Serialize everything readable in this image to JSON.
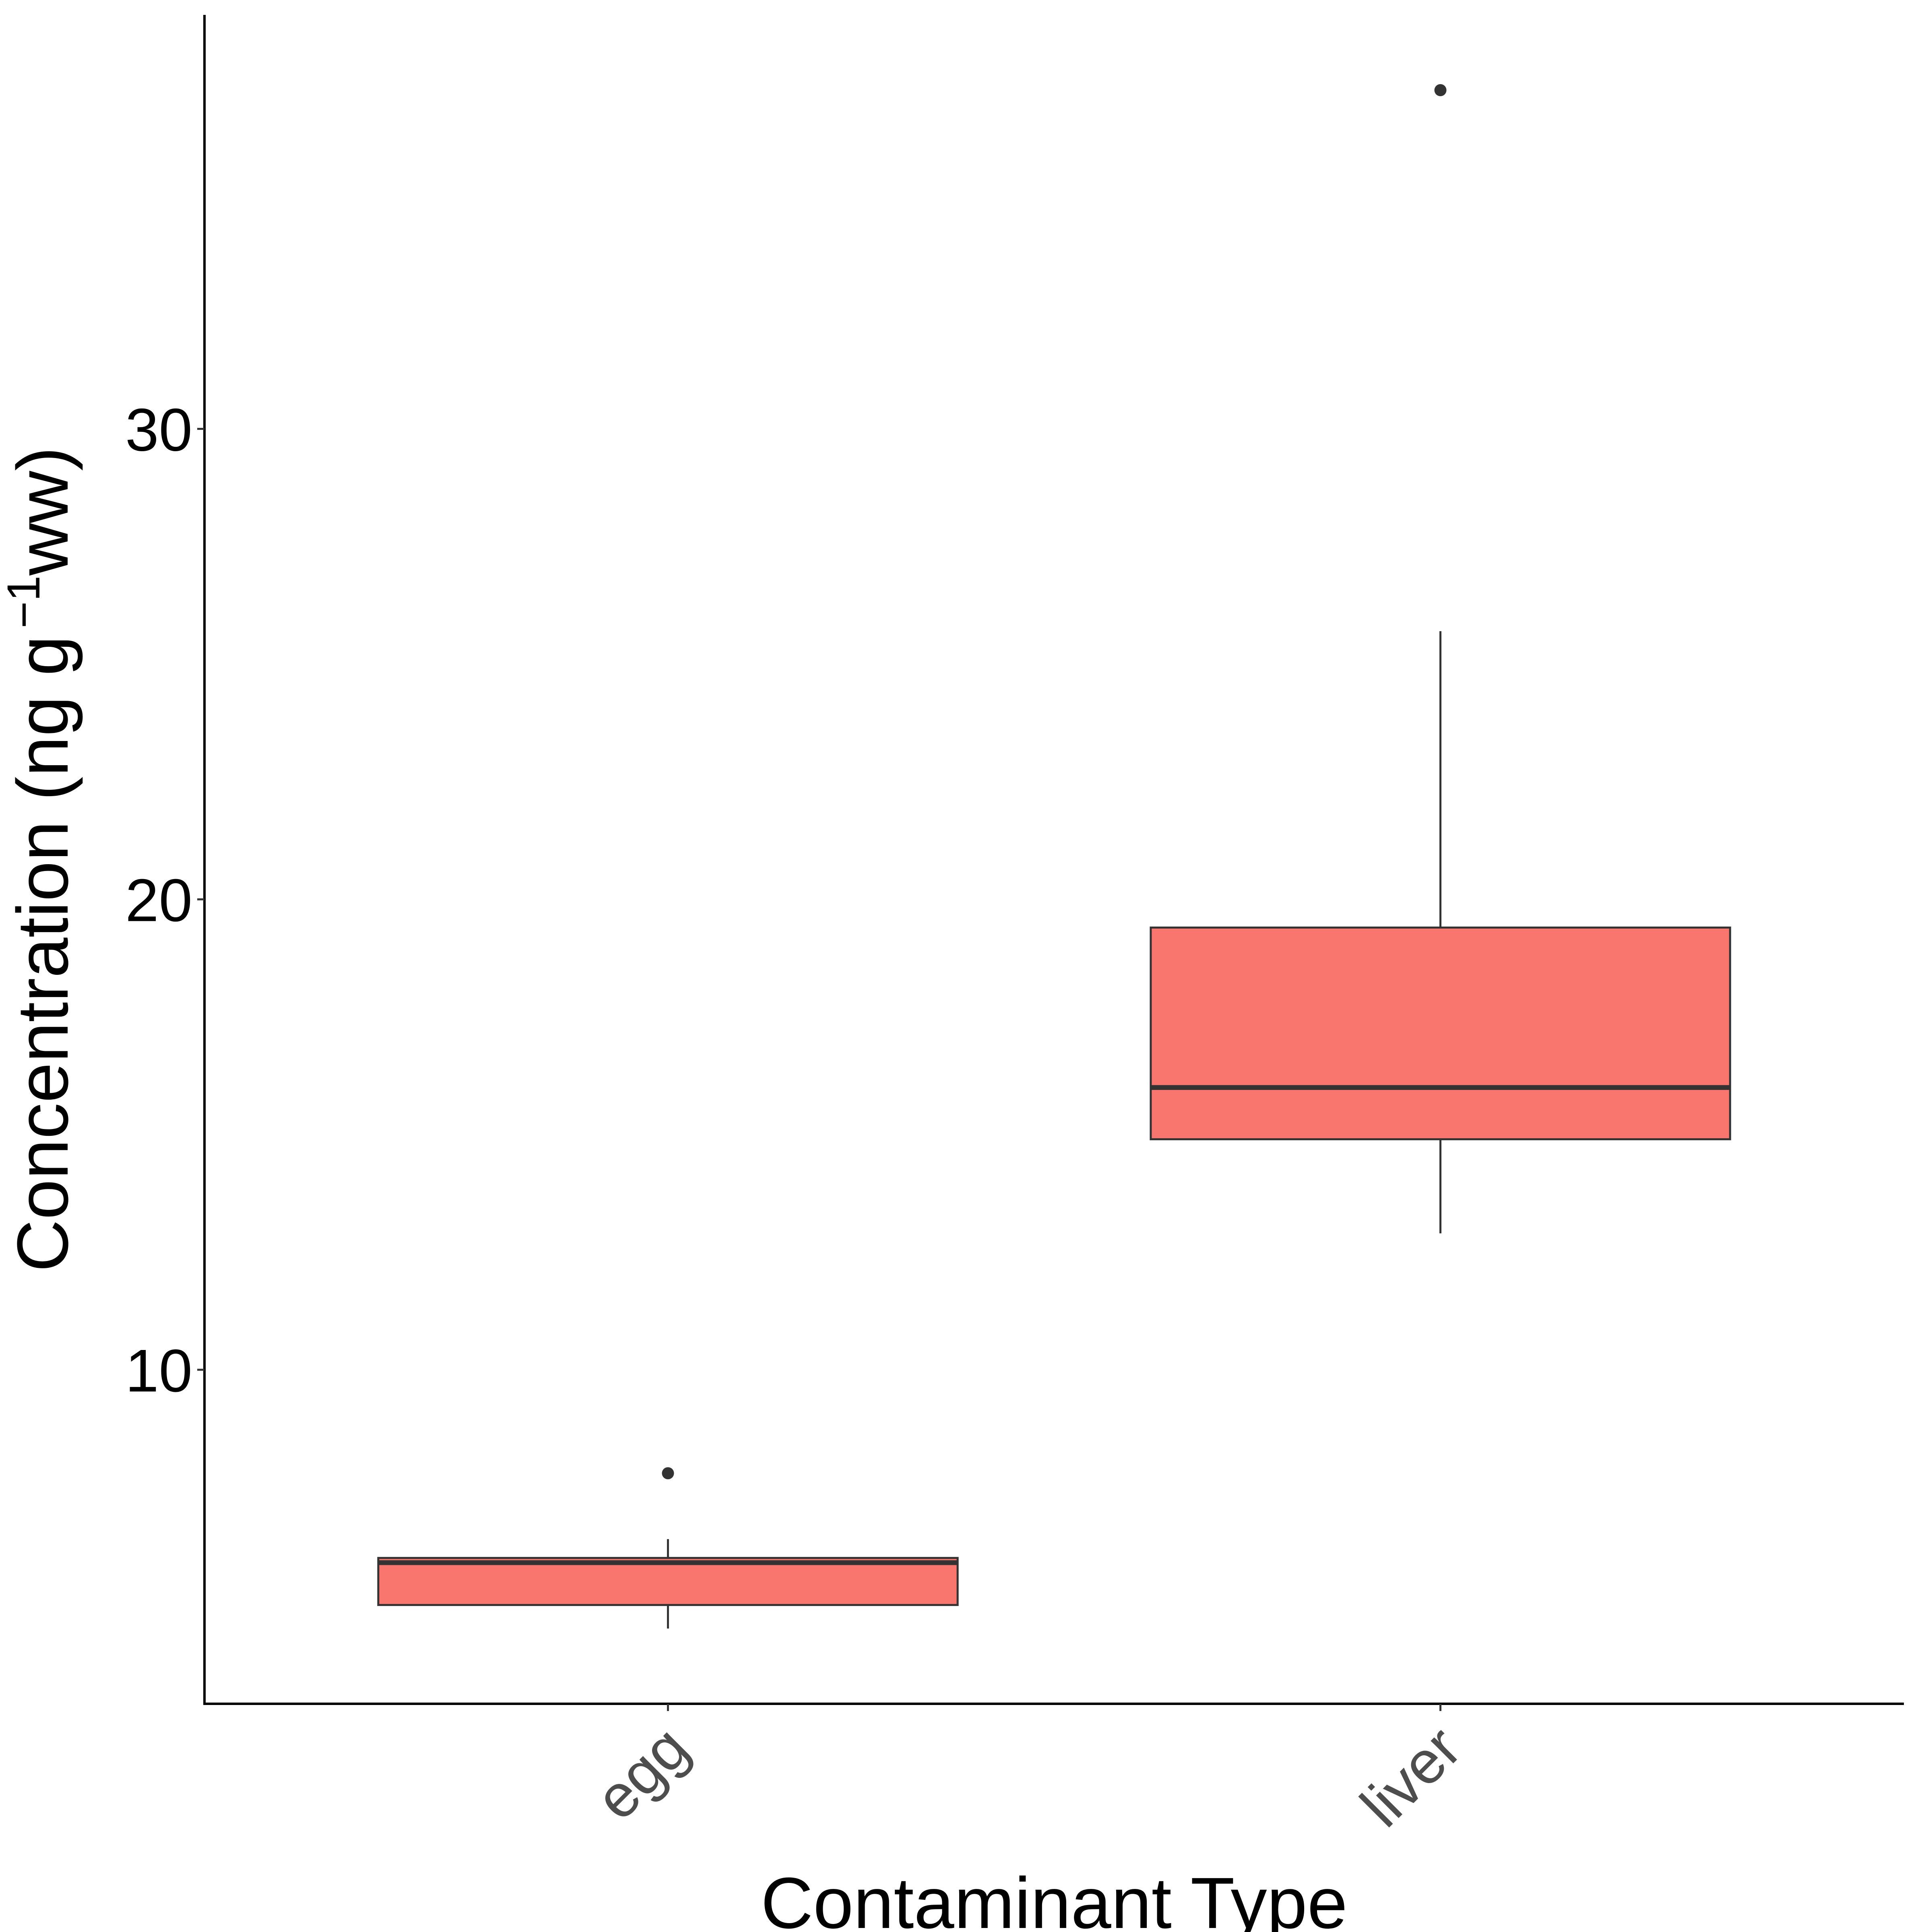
{
  "chart_data": {
    "type": "box",
    "title": "",
    "xlabel": "Contaminant Type",
    "ylabel": {
      "main": "Concentration (ng g",
      "superscript": "−1",
      "suffix": "ww)"
    },
    "ylim": [
      2.9,
      38.8
    ],
    "yticks": [
      10,
      20,
      30
    ],
    "grid": false,
    "legend": "none",
    "fill_color": "#F8766D",
    "stroke_color": "#333333",
    "categories": [
      "egg",
      "liver"
    ],
    "boxes": [
      {
        "category": "egg",
        "whisker_low": 4.5,
        "q1": 5.0,
        "median": 5.9,
        "q3": 6.0,
        "whisker_high": 6.4,
        "outliers": [
          7.8
        ]
      },
      {
        "category": "liver",
        "whisker_low": 12.9,
        "q1": 14.9,
        "median": 16.0,
        "q3": 19.4,
        "whisker_high": 25.7,
        "outliers": [
          37.2
        ]
      }
    ]
  }
}
